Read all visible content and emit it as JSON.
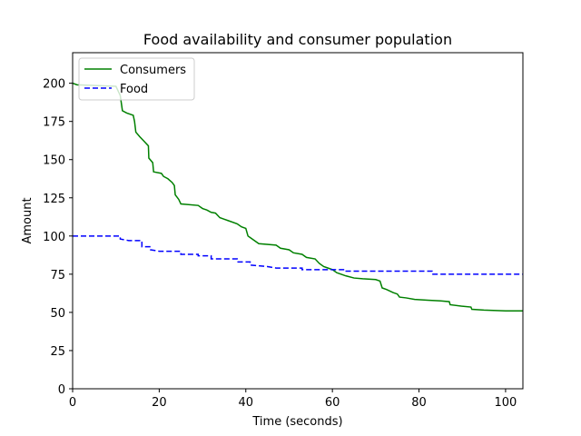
{
  "chart_data": {
    "type": "line",
    "title": "Food availability and consumer population",
    "xlabel": "Time (seconds)",
    "ylabel": "Amount",
    "xlim": [
      0,
      104
    ],
    "ylim": [
      0,
      220
    ],
    "xticks": [
      0,
      20,
      40,
      60,
      80,
      100
    ],
    "yticks": [
      0,
      25,
      50,
      75,
      100,
      125,
      150,
      175,
      200
    ],
    "grid": false,
    "legend": "top-left",
    "series": [
      {
        "name": "Consumers",
        "color": "#008000",
        "style": "solid",
        "points": [
          [
            0,
            200
          ],
          [
            1,
            199
          ],
          [
            10,
            198
          ],
          [
            11,
            192
          ],
          [
            11.5,
            182
          ],
          [
            12.5,
            180.5
          ],
          [
            14,
            179
          ],
          [
            14.3,
            175
          ],
          [
            14.6,
            168
          ],
          [
            15.5,
            165
          ],
          [
            16.5,
            162
          ],
          [
            17.5,
            159
          ],
          [
            17.6,
            151
          ],
          [
            18.5,
            148
          ],
          [
            18.7,
            142
          ],
          [
            20.5,
            141
          ],
          [
            21,
            139
          ],
          [
            22,
            137.5
          ],
          [
            23,
            135
          ],
          [
            23.5,
            133
          ],
          [
            23.7,
            127
          ],
          [
            24.5,
            124
          ],
          [
            25,
            121
          ],
          [
            29,
            120
          ],
          [
            30,
            118
          ],
          [
            31,
            117
          ],
          [
            32,
            115.5
          ],
          [
            33,
            115
          ],
          [
            34,
            112
          ],
          [
            35,
            111
          ],
          [
            36,
            110
          ],
          [
            38,
            108
          ],
          [
            39,
            106
          ],
          [
            40,
            105
          ],
          [
            40.5,
            100
          ],
          [
            41,
            99
          ],
          [
            42,
            97
          ],
          [
            43,
            95
          ],
          [
            47,
            94
          ],
          [
            48,
            92
          ],
          [
            50,
            91
          ],
          [
            51,
            89
          ],
          [
            53,
            88
          ],
          [
            54,
            86
          ],
          [
            56,
            85
          ],
          [
            57,
            82
          ],
          [
            58,
            80
          ],
          [
            59,
            79
          ],
          [
            60,
            78
          ],
          [
            61,
            76
          ],
          [
            63,
            74
          ],
          [
            65,
            72.5
          ],
          [
            67,
            72
          ],
          [
            70,
            71.5
          ],
          [
            71,
            70.5
          ],
          [
            71.5,
            66
          ],
          [
            72.5,
            65
          ],
          [
            74,
            63
          ],
          [
            75,
            62
          ],
          [
            75.5,
            60
          ],
          [
            77,
            59.5
          ],
          [
            79,
            58.5
          ],
          [
            82,
            58
          ],
          [
            85,
            57.5
          ],
          [
            87,
            57
          ],
          [
            87.2,
            55
          ],
          [
            90,
            54
          ],
          [
            92,
            53.5
          ],
          [
            92.2,
            52
          ],
          [
            95,
            51.5
          ],
          [
            100,
            51
          ],
          [
            104,
            51
          ]
        ]
      },
      {
        "name": "Food",
        "color": "#0000ff",
        "style": "dashed",
        "points": [
          [
            0,
            100
          ],
          [
            11,
            100
          ],
          [
            11,
            98
          ],
          [
            13,
            97
          ],
          [
            16,
            97
          ],
          [
            16,
            93
          ],
          [
            18,
            93
          ],
          [
            18,
            91
          ],
          [
            20,
            90
          ],
          [
            25,
            90
          ],
          [
            25,
            88
          ],
          [
            29,
            88
          ],
          [
            29,
            87
          ],
          [
            32,
            87
          ],
          [
            32,
            85
          ],
          [
            38,
            85
          ],
          [
            38,
            83
          ],
          [
            41,
            83
          ],
          [
            41,
            81
          ],
          [
            45,
            80
          ],
          [
            47,
            79
          ],
          [
            53,
            79
          ],
          [
            53,
            78
          ],
          [
            63,
            78
          ],
          [
            63,
            77
          ],
          [
            83,
            77
          ],
          [
            83,
            75
          ],
          [
            104,
            75
          ]
        ]
      }
    ]
  }
}
